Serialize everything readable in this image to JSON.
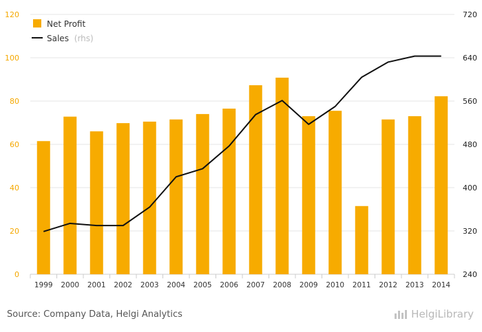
{
  "chart_data": {
    "type": "bar",
    "categories": [
      "1999",
      "2000",
      "2001",
      "2002",
      "2003",
      "2004",
      "2005",
      "2006",
      "2007",
      "2008",
      "2009",
      "2010",
      "2011",
      "2012",
      "2013",
      "2014"
    ],
    "series": [
      {
        "name": "Net Profit",
        "type": "bar",
        "axis": "left",
        "color": "#f7ab00",
        "values": [
          61.5,
          72.8,
          66.0,
          69.8,
          70.5,
          71.5,
          74.0,
          76.5,
          87.3,
          90.8,
          73.0,
          75.5,
          31.5,
          71.5,
          73.0,
          82.2
        ]
      },
      {
        "name": "Sales",
        "type": "line",
        "axis": "right",
        "color": "#111111",
        "values": [
          319,
          334,
          330,
          330,
          364,
          420,
          435,
          477,
          535,
          561,
          517,
          550,
          604,
          632,
          643,
          643
        ]
      }
    ],
    "left_axis": {
      "min": 0,
      "max": 120,
      "ticks": [
        "0",
        "20",
        "40",
        "60",
        "80",
        "100",
        "120"
      ]
    },
    "right_axis": {
      "min": 240,
      "max": 720,
      "ticks": [
        "240",
        "320",
        "400",
        "480",
        "560",
        "640",
        "720"
      ]
    },
    "legend": [
      {
        "label": "Net Profit",
        "suffix": ""
      },
      {
        "label": "Sales",
        "suffix": "(rhs)"
      }
    ],
    "legend_position": "top-left",
    "grid": true
  },
  "footer": {
    "source": "Source: Company Data, Helgi Analytics",
    "brand": "HelgiLibrary"
  }
}
